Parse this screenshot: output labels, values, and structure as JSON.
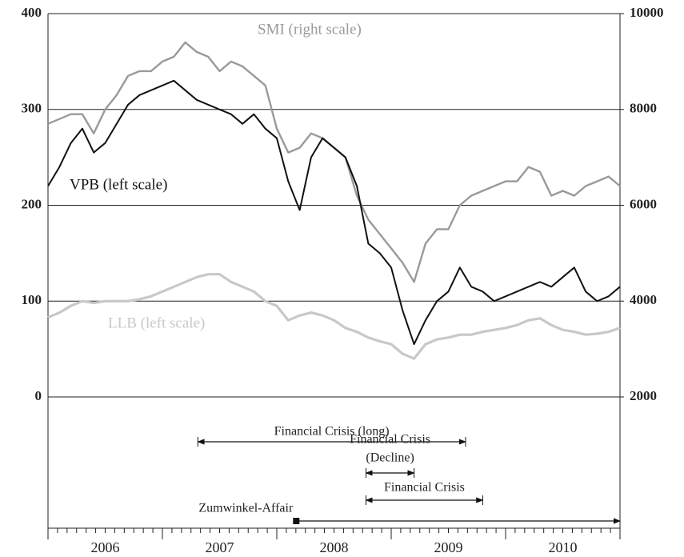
{
  "chart_data": {
    "type": "line",
    "x": [
      2006.0,
      2006.1,
      2006.2,
      2006.3,
      2006.4,
      2006.5,
      2006.6,
      2006.7,
      2006.8,
      2006.9,
      2007.0,
      2007.1,
      2007.2,
      2007.3,
      2007.4,
      2007.5,
      2007.6,
      2007.7,
      2007.8,
      2007.9,
      2008.0,
      2008.1,
      2008.2,
      2008.3,
      2008.4,
      2008.5,
      2008.6,
      2008.7,
      2008.8,
      2008.9,
      2009.0,
      2009.1,
      2009.2,
      2009.3,
      2009.4,
      2009.5,
      2009.6,
      2009.7,
      2009.8,
      2009.9,
      2010.0,
      2010.1,
      2010.2,
      2010.3,
      2010.4,
      2010.5,
      2010.6,
      2010.7,
      2010.8,
      2010.9,
      2011.0
    ],
    "categories": [
      "2006",
      "2007",
      "2008",
      "2009",
      "2010"
    ],
    "xlim": [
      2006,
      2011
    ],
    "xticks": [
      2006,
      2007,
      2008,
      2009,
      2010,
      2011
    ],
    "ylim": [
      0,
      400
    ],
    "yticks": [
      0,
      100,
      200,
      300,
      400
    ],
    "y2lim": [
      2000,
      10000
    ],
    "y2ticks": [
      2000,
      4000,
      6000,
      8000,
      10000
    ],
    "grid": true,
    "series": [
      {
        "name": "SMI (right scale)",
        "color": "#9a9a9a",
        "axis": "y2",
        "values": [
          7700,
          7800,
          7900,
          7900,
          7500,
          8000,
          8300,
          8700,
          8800,
          8800,
          9000,
          9100,
          9400,
          9200,
          9100,
          8800,
          9000,
          8900,
          8700,
          8500,
          7600,
          7100,
          7200,
          7500,
          7400,
          7200,
          7000,
          6200,
          5700,
          5400,
          5100,
          4800,
          4400,
          5200,
          5500,
          5500,
          6000,
          6200,
          6300,
          6400,
          6500,
          6500,
          6800,
          6700,
          6200,
          6300,
          6200,
          6400,
          6500,
          6600,
          6400
        ]
      },
      {
        "name": "VPB (left scale)",
        "color": "#111111",
        "values": [
          220,
          240,
          265,
          280,
          255,
          265,
          285,
          305,
          315,
          320,
          325,
          330,
          320,
          310,
          305,
          300,
          295,
          285,
          295,
          280,
          270,
          225,
          195,
          250,
          270,
          260,
          250,
          220,
          160,
          150,
          135,
          90,
          55,
          80,
          100,
          110,
          135,
          115,
          110,
          100,
          105,
          110,
          115,
          120,
          115,
          125,
          135,
          110,
          100,
          105,
          115
        ]
      },
      {
        "name": "LLB (left scale)",
        "color": "#c8c8c8",
        "values": [
          83,
          88,
          95,
          100,
          98,
          100,
          100,
          100,
          102,
          105,
          110,
          115,
          120,
          125,
          128,
          128,
          120,
          115,
          110,
          100,
          95,
          80,
          85,
          88,
          85,
          80,
          72,
          68,
          62,
          58,
          55,
          45,
          40,
          55,
          60,
          62,
          65,
          65,
          68,
          70,
          72,
          75,
          80,
          82,
          75,
          70,
          68,
          65,
          66,
          68,
          72
        ]
      }
    ],
    "annotations": [
      {
        "label": "Financial Crisis (long)",
        "start": 2007.31,
        "end": 2009.65
      },
      {
        "label": "Financial Crisis",
        "label2": "(Decline)",
        "start": 2008.78,
        "end": 2009.2
      },
      {
        "label": "Financial Crisis",
        "start": 2008.78,
        "end": 2009.8
      },
      {
        "label": "Zumwinkel-Affair",
        "start": 2008.17,
        "end": 2011.0,
        "marker": true
      }
    ]
  }
}
